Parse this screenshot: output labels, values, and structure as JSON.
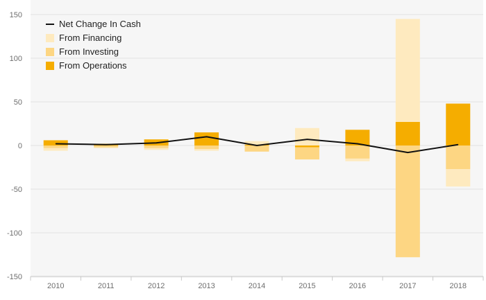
{
  "chart_data": {
    "type": "bar",
    "stacked": true,
    "categories": [
      "2010",
      "2011",
      "2012",
      "2013",
      "2014",
      "2015",
      "2016",
      "2017",
      "2018"
    ],
    "ylim": [
      -150,
      150
    ],
    "yticks": [
      150,
      100,
      50,
      0,
      -50,
      -100,
      -150
    ],
    "grid": true,
    "legend_position": "top-left",
    "series": [
      {
        "name": "From Operations",
        "kind": "bar",
        "color": "#f5ad00",
        "values": [
          6,
          2,
          7,
          15,
          1,
          -2,
          18,
          27,
          48
        ]
      },
      {
        "name": "From Investing",
        "kind": "bar",
        "color": "#fdd683",
        "values": [
          -3,
          -2,
          -3,
          -4,
          -7,
          -14,
          -15,
          -128,
          -27
        ]
      },
      {
        "name": "From Financing",
        "kind": "bar",
        "color": "#feeabf",
        "values": [
          -3,
          -1,
          -2,
          -2,
          4,
          20,
          -3,
          118,
          -20
        ]
      },
      {
        "name": "Net Change In Cash",
        "kind": "line",
        "color": "#111111",
        "values": [
          2,
          1,
          3,
          10,
          0,
          7,
          2,
          -8,
          1
        ]
      }
    ],
    "legend": [
      "Net Change In Cash",
      "From Financing",
      "From Investing",
      "From Operations"
    ]
  }
}
